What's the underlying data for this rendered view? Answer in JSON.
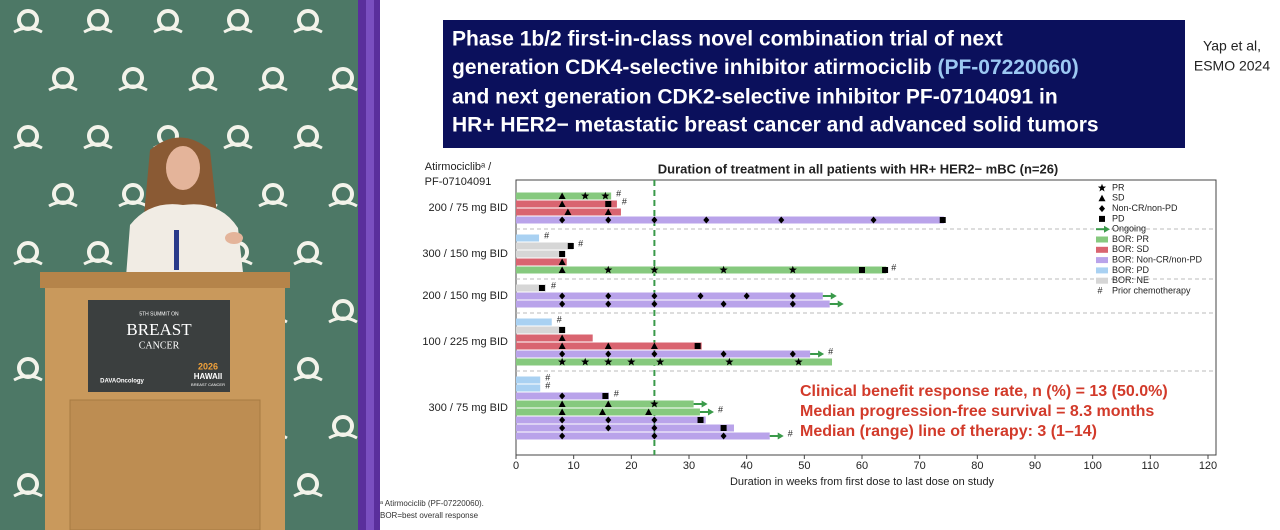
{
  "slide": {
    "title_lines": [
      "Phase 1b/2 first-in-class novel combination trial of next",
      "generation CDK4-selective inhibitor atirmociclib",
      "and next generation CDK2-selective inhibitor PF-07104091 in",
      "HR+ HER2− metastatic breast cancer and advanced solid tumors"
    ],
    "title_highlight": "(PF-07220060)",
    "citation": [
      "Yap et al,",
      "ESMO 2024"
    ],
    "footnotes": [
      "ᵃ Atirmociclib (PF-07220060).",
      "BOR=best overall response"
    ]
  },
  "podium_sign": {
    "top": "5TH SUMMIT ON",
    "main": "BREAST",
    "sub": "CANCER",
    "sponsor": "DAVAOncology",
    "year": "2026",
    "place": "HAWAII",
    "tag": "BREAST CANCER"
  },
  "chart_data": {
    "type": "swimmer",
    "title": "Duration of treatment in all patients with HR+ HER2− mBC (n=26)",
    "y_title": [
      "Atirmociclibᵃ /",
      "PF-07104091"
    ],
    "x_label": "Duration in weeks from first dose to last dose on study",
    "xlim": [
      0,
      120
    ],
    "xticks": [
      0,
      10,
      20,
      30,
      40,
      50,
      60,
      70,
      80,
      90,
      100,
      110,
      120
    ],
    "ref_line": 24,
    "ref_color": "#3a9a4a",
    "legend": [
      {
        "name": "PR",
        "symbol": "star"
      },
      {
        "name": "SD",
        "symbol": "triangle"
      },
      {
        "name": "Non-CR/non-PD",
        "symbol": "diamond"
      },
      {
        "name": "PD",
        "symbol": "square"
      },
      {
        "name": "Ongoing",
        "symbol": "arrow"
      },
      {
        "name": "BOR: PR",
        "symbol": "bar",
        "color": "#86c97e"
      },
      {
        "name": "BOR: SD",
        "symbol": "bar",
        "color": "#d96470"
      },
      {
        "name": "BOR: Non-CR/non-PD",
        "symbol": "bar",
        "color": "#b9a3ea"
      },
      {
        "name": "BOR: PD",
        "symbol": "bar",
        "color": "#a9d1f2"
      },
      {
        "name": "BOR: NE",
        "symbol": "bar",
        "color": "#d6d6d6"
      },
      {
        "name": "Prior chemotherapy",
        "symbol": "#"
      }
    ],
    "groups": [
      {
        "label": "200 / 75 mg BID",
        "rows": [
          {
            "value": 16.5,
            "color": "#86c97e",
            "sd": [
              8
            ],
            "pr": [
              12,
              15.5
            ],
            "prior": true
          },
          {
            "value": 17.5,
            "color": "#d96470",
            "sd": [
              8
            ],
            "pd": [
              16
            ],
            "prior": true
          },
          {
            "value": 18.2,
            "color": "#d96470",
            "sd": [
              9,
              16
            ]
          },
          {
            "value": 74.2,
            "color": "#b9a3ea",
            "noncr": [
              8,
              16,
              24,
              33,
              46,
              62
            ],
            "pd": [
              74
            ]
          }
        ]
      },
      {
        "label": "300 / 150 mg BID",
        "rows": [
          {
            "value": 4,
            "color": "#a9d1f2",
            "prior": true
          },
          {
            "value": 9.9,
            "color": "#d6d6d6",
            "pd": [
              9.5
            ],
            "prior": true
          },
          {
            "value": 8.5,
            "color": "#d6d6d6",
            "pd": [
              8
            ]
          },
          {
            "value": 8.8,
            "color": "#d96470",
            "sd": [
              8
            ]
          },
          {
            "value": 64.2,
            "color": "#86c97e",
            "sd": [
              8
            ],
            "pr": [
              16,
              24,
              36,
              48
            ],
            "pd": [
              60,
              64
            ],
            "prior": true
          }
        ]
      },
      {
        "label": "200 / 150 mg BID",
        "rows": [
          {
            "value": 5.2,
            "color": "#d6d6d6",
            "pd": [
              4.5
            ],
            "prior": true
          },
          {
            "value": 53.2,
            "color": "#b9a3ea",
            "noncr": [
              8,
              16,
              24,
              32,
              40,
              48
            ],
            "ongoing": true
          },
          {
            "value": 54.4,
            "color": "#b9a3ea",
            "noncr": [
              8,
              16,
              24,
              36,
              48
            ],
            "ongoing": true
          }
        ]
      },
      {
        "label": "100 / 225 mg BID",
        "rows": [
          {
            "value": 6.2,
            "color": "#a9d1f2",
            "prior": true
          },
          {
            "value": 8.5,
            "color": "#d6d6d6",
            "pd": [
              8
            ]
          },
          {
            "value": 13.3,
            "color": "#d96470",
            "sd": [
              8
            ]
          },
          {
            "value": 32.2,
            "color": "#d96470",
            "sd": [
              8,
              16,
              24
            ],
            "pd": [
              31.5
            ]
          },
          {
            "value": 51,
            "color": "#b9a3ea",
            "noncr": [
              8,
              16,
              24,
              36,
              48
            ],
            "ongoing": true,
            "prior": true
          },
          {
            "value": 54.8,
            "color": "#86c97e",
            "pr": [
              8,
              12,
              16,
              20,
              25,
              37,
              49
            ]
          }
        ]
      },
      {
        "label": "300 / 75 mg BID",
        "rows": [
          {
            "value": 4.2,
            "color": "#a9d1f2",
            "prior": true
          },
          {
            "value": 4.2,
            "color": "#a9d1f2",
            "prior": true
          },
          {
            "value": 16.1,
            "color": "#b9a3ea",
            "noncr": [
              8
            ],
            "pd": [
              15.5
            ],
            "prior": true
          },
          {
            "value": 30.8,
            "color": "#86c97e",
            "sd": [
              8,
              16
            ],
            "pr": [
              24
            ],
            "ongoing": true
          },
          {
            "value": 31.9,
            "color": "#86c97e",
            "sd": [
              8,
              15,
              23
            ],
            "ongoing": true,
            "prior": true
          },
          {
            "value": 32.9,
            "color": "#b9a3ea",
            "noncr": [
              8,
              16,
              24
            ],
            "pd": [
              32
            ]
          },
          {
            "value": 37.8,
            "color": "#b9a3ea",
            "noncr": [
              8,
              16,
              24
            ],
            "pd": [
              36
            ]
          },
          {
            "value": 44,
            "color": "#b9a3ea",
            "noncr": [
              8,
              24,
              36
            ],
            "ongoing": true,
            "prior": true
          }
        ]
      }
    ],
    "annotations": [
      "Clinical benefit response rate, n (%) = 13 (50.0%)",
      "Median progression-free survival = 8.3 months",
      "Median (range) line of therapy: 3 (1–14)"
    ]
  }
}
